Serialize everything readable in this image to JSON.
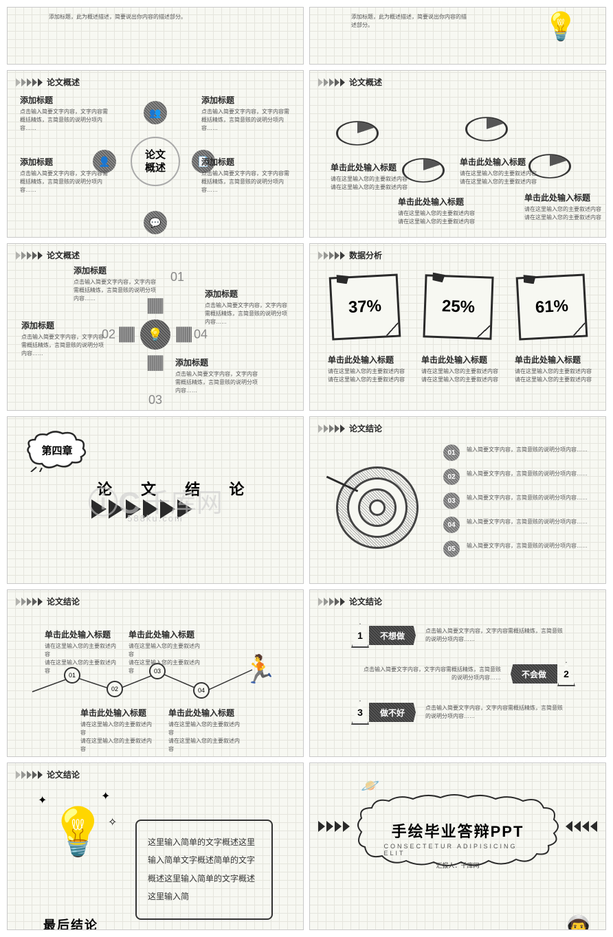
{
  "colors": {
    "ink": "#2a2a2a",
    "muted": "#555",
    "paper": "#f7f8f2",
    "grid": "#e5e5dd",
    "pencil": "#666"
  },
  "common": {
    "shortDesc": "点击输入简要文字内容，文字内容需概括精炼，言简意赅的说明分项内容……",
    "clickTitle": "单击此处输入标题",
    "clickDesc": "请在这里输入您的主要叙述内容\n请在这里输入您的主要叙述内容",
    "addTitle": "添加标题",
    "listDesc": "输入简要文字内容，言简意赅的说明分项内容……"
  },
  "s1": {
    "desc": "添加标题，此为概述描述，简要说出你内容的描述部分。"
  },
  "s3": {
    "header": "论文概述",
    "center": "论文\n概述",
    "icons": [
      "👥",
      "📄",
      "💬",
      "👤"
    ]
  },
  "s4": {
    "header": "论文概述"
  },
  "s5": {
    "header": "论文概述",
    "nums": [
      "01",
      "02",
      "03",
      "04"
    ]
  },
  "s6": {
    "header": "数据分析",
    "vals": [
      "37%",
      "25%",
      "61%"
    ]
  },
  "s7": {
    "chapter": "第四章",
    "title": "论 文 结 论",
    "watermark": "千库网",
    "wmsub": "588ku.com"
  },
  "s8": {
    "header": "论文结论",
    "nums": [
      "01",
      "02",
      "03",
      "04",
      "05"
    ]
  },
  "s9": {
    "header": "论文结论",
    "nums": [
      "01",
      "02",
      "03",
      "04"
    ]
  },
  "s10": {
    "header": "论文结论",
    "items": [
      {
        "n": "1",
        "label": "不想做",
        "desc": "点击输入简要文字内容，文字内容需概括精炼，言简意赅的说明分项内容……"
      },
      {
        "n": "2",
        "label": "不会做",
        "desc": "点击输入简要文字内容，文字内容需概括精炼，言简意赅的说明分项内容……"
      },
      {
        "n": "3",
        "label": "做不好",
        "desc": "点击输入简要文字内容，文字内容需概括精炼，言简意赅的说明分项内容……"
      }
    ]
  },
  "s11": {
    "header": "论文结论",
    "final": "最后结论",
    "box": "这里输入简单的文字概述这里输入简单文字概述简单的文字概述这里输入简单的文字概述这里输入简"
  },
  "s12": {
    "title": "手绘毕业答辩PPT",
    "sub": "CONSECTETUR ADIPISICING ELIT",
    "author": "汇报人：千库网"
  }
}
